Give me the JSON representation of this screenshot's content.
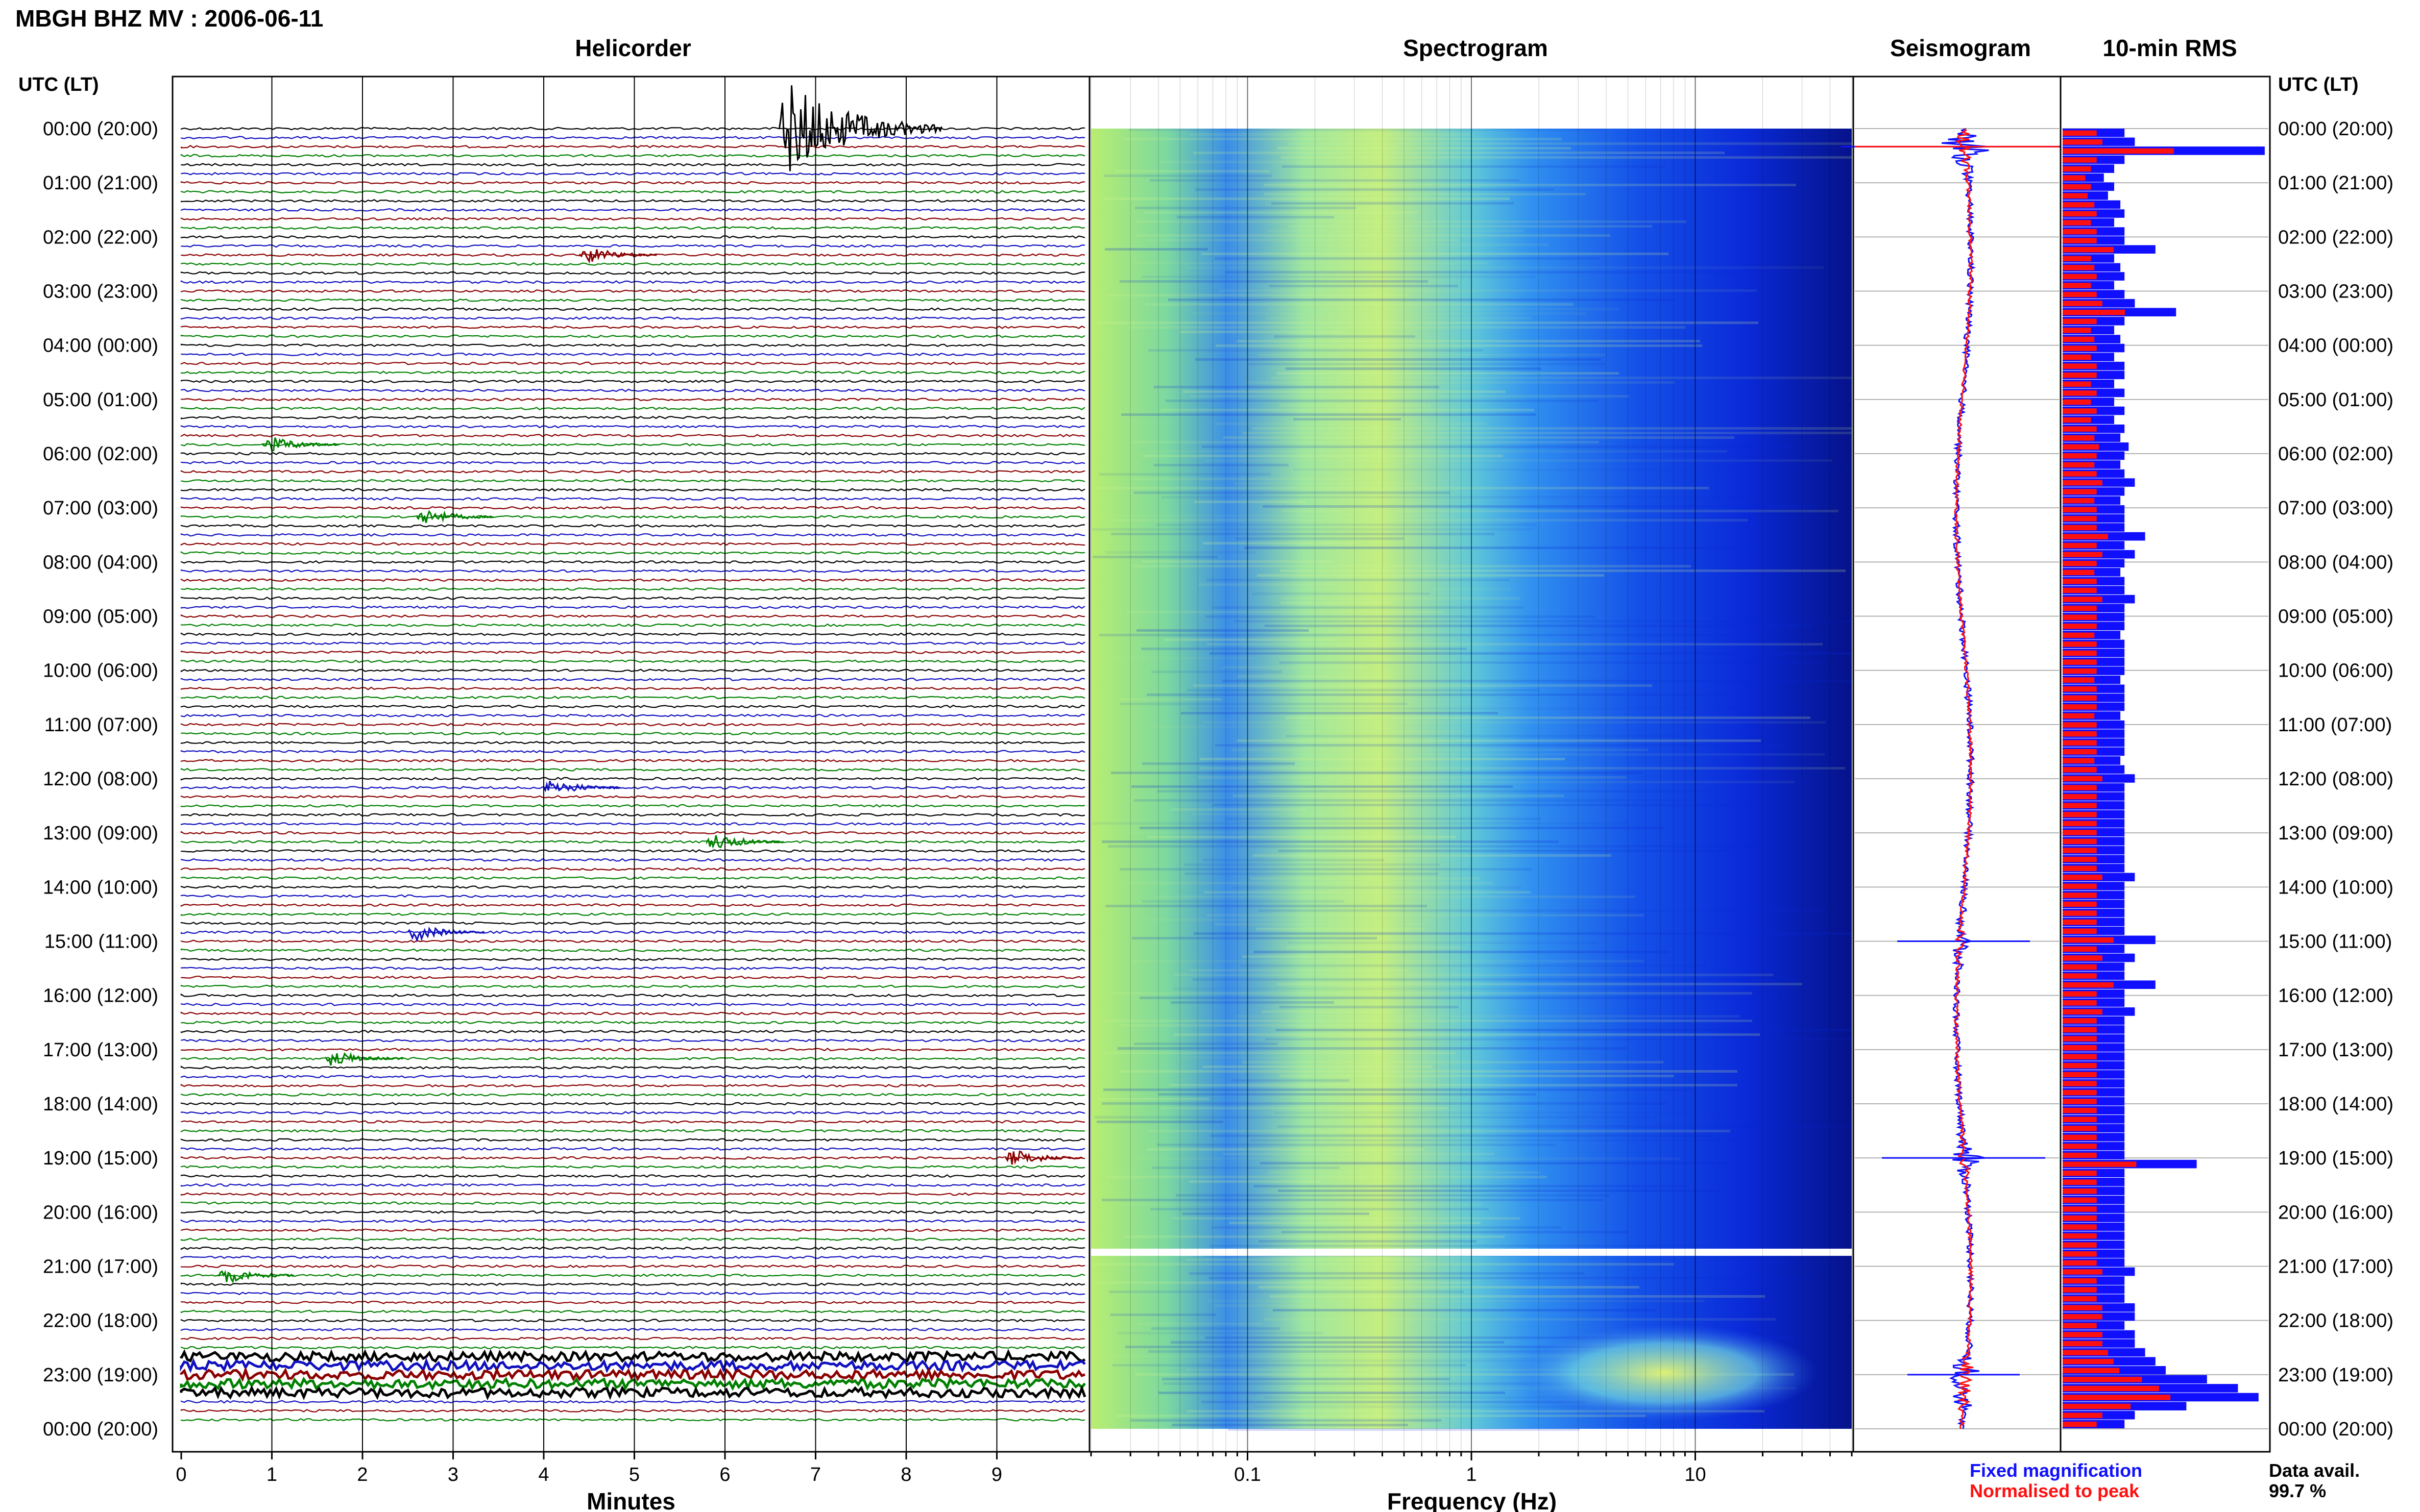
{
  "figure_title": "MBGH BHZ MV : 2006-06-11",
  "panels": {
    "helicorder": "Helicorder",
    "spectrogram": "Spectrogram",
    "seismogram": "Seismogram",
    "rms": "10-min RMS"
  },
  "time_axis_title": "UTC (LT)",
  "time_labels": [
    "00:00 (20:00)",
    "01:00 (21:00)",
    "02:00 (22:00)",
    "03:00 (23:00)",
    "04:00 (00:00)",
    "05:00 (01:00)",
    "06:00 (02:00)",
    "07:00 (03:00)",
    "08:00 (04:00)",
    "09:00 (05:00)",
    "10:00 (06:00)",
    "11:00 (07:00)",
    "12:00 (08:00)",
    "13:00 (09:00)",
    "14:00 (10:00)",
    "15:00 (11:00)",
    "16:00 (12:00)",
    "17:00 (13:00)",
    "18:00 (14:00)",
    "19:00 (15:00)",
    "20:00 (16:00)",
    "21:00 (17:00)",
    "22:00 (18:00)",
    "23:00 (19:00)",
    "00:00 (20:00)"
  ],
  "helicorder_axis": {
    "label": "Minutes",
    "ticks": [
      "0",
      "1",
      "2",
      "3",
      "4",
      "5",
      "6",
      "7",
      "8",
      "9"
    ]
  },
  "spectrogram_axis": {
    "label": "Frequency (Hz)",
    "ticks": [
      "0.1",
      "1",
      "10"
    ]
  },
  "legend": {
    "fixed": "Fixed magnification",
    "normalised": "Normalised to peak",
    "fixed_color": "#1010ff",
    "normalised_color": "#ff1010"
  },
  "availability": {
    "label": "Data avail.",
    "value": "99.7 %"
  },
  "colors": {
    "trace_cycle": [
      "#000000",
      "#1010c0",
      "#8b0000",
      "#008000"
    ],
    "spectro_low": "#00008b",
    "spectro_high": "#c8f050"
  },
  "chart_data": [
    {
      "type": "line",
      "title": "Helicorder",
      "xlabel": "Minutes",
      "x_range": [
        0,
        10
      ],
      "rows": 144,
      "row_minutes": 10,
      "notable_events": [
        {
          "time": "00:00",
          "minute": 6.6,
          "note": "large event"
        },
        {
          "time": "02:20",
          "minute": 4.4
        },
        {
          "time": "05:50",
          "minute": 0.9
        },
        {
          "time": "07:10",
          "minute": 2.6
        },
        {
          "time": "12:10",
          "minute": 4.0
        },
        {
          "time": "13:10",
          "minute": 5.8
        },
        {
          "time": "14:50",
          "minute": 2.5
        },
        {
          "time": "17:10",
          "minute": 1.6
        },
        {
          "time": "19:00",
          "minute": 9.1
        },
        {
          "time": "21:10",
          "minute": 0.4
        },
        {
          "time": "22:40",
          "minute": 0.0,
          "note": "sustained tremor 22:40-23:20"
        }
      ]
    },
    {
      "type": "heatmap",
      "title": "Spectrogram",
      "xlabel": "Frequency (Hz)",
      "xscale": "log",
      "x_range": [
        0.02,
        50
      ],
      "gap_time": "21:00",
      "high_energy_band": {
        "time": "22:40-23:20",
        "frequency_hz": [
          2,
          20
        ]
      }
    },
    {
      "type": "line",
      "title": "Seismogram",
      "series": [
        {
          "name": "Fixed magnification",
          "color": "#1010ff"
        },
        {
          "name": "Normalised to peak",
          "color": "#ff1010"
        }
      ],
      "peaks": [
        {
          "time": "00:20",
          "relative_amplitude": 1.0
        },
        {
          "time": "15:00",
          "relative_amplitude": 0.45
        },
        {
          "time": "19:00",
          "relative_amplitude": 0.6
        },
        {
          "time": "23:00",
          "relative_amplitude": 0.35
        }
      ]
    },
    {
      "type": "bar",
      "title": "10-min RMS",
      "orientation": "horizontal",
      "interval_minutes": 10,
      "notes": "Relative RMS per 10-minute window; maxima near 00:20, 19:00 and 23:00",
      "fixed_relative": [
        0.3,
        0.35,
        0.98,
        0.3,
        0.25,
        0.2,
        0.25,
        0.22,
        0.28,
        0.3,
        0.25,
        0.3,
        0.3,
        0.45,
        0.25,
        0.28,
        0.3,
        0.25,
        0.3,
        0.35,
        0.55,
        0.3,
        0.25,
        0.28,
        0.3,
        0.25,
        0.3,
        0.3,
        0.25,
        0.3,
        0.25,
        0.3,
        0.25,
        0.3,
        0.28,
        0.32,
        0.3,
        0.28,
        0.3,
        0.35,
        0.3,
        0.28,
        0.3,
        0.3,
        0.3,
        0.4,
        0.3,
        0.35,
        0.3,
        0.28,
        0.3,
        0.3,
        0.35,
        0.3,
        0.3,
        0.3,
        0.28,
        0.3,
        0.3,
        0.3,
        0.3,
        0.28,
        0.3,
        0.3,
        0.3,
        0.28,
        0.3,
        0.3,
        0.3,
        0.3,
        0.28,
        0.3,
        0.35,
        0.3,
        0.3,
        0.3,
        0.3,
        0.3,
        0.3,
        0.3,
        0.3,
        0.3,
        0.3,
        0.35,
        0.3,
        0.3,
        0.3,
        0.3,
        0.3,
        0.3,
        0.45,
        0.3,
        0.35,
        0.3,
        0.3,
        0.45,
        0.3,
        0.3,
        0.35,
        0.3,
        0.3,
        0.3,
        0.3,
        0.3,
        0.3,
        0.3,
        0.3,
        0.3,
        0.3,
        0.3,
        0.3,
        0.3,
        0.3,
        0.3,
        0.3,
        0.65,
        0.3,
        0.3,
        0.3,
        0.3,
        0.3,
        0.3,
        0.3,
        0.3,
        0.3,
        0.3,
        0.3,
        0.35,
        0.3,
        0.3,
        0.3,
        0.35,
        0.35,
        0.3,
        0.35,
        0.35,
        0.4,
        0.45,
        0.5,
        0.7,
        0.85,
        0.95,
        0.6,
        0.35,
        0.3
      ]
    }
  ]
}
